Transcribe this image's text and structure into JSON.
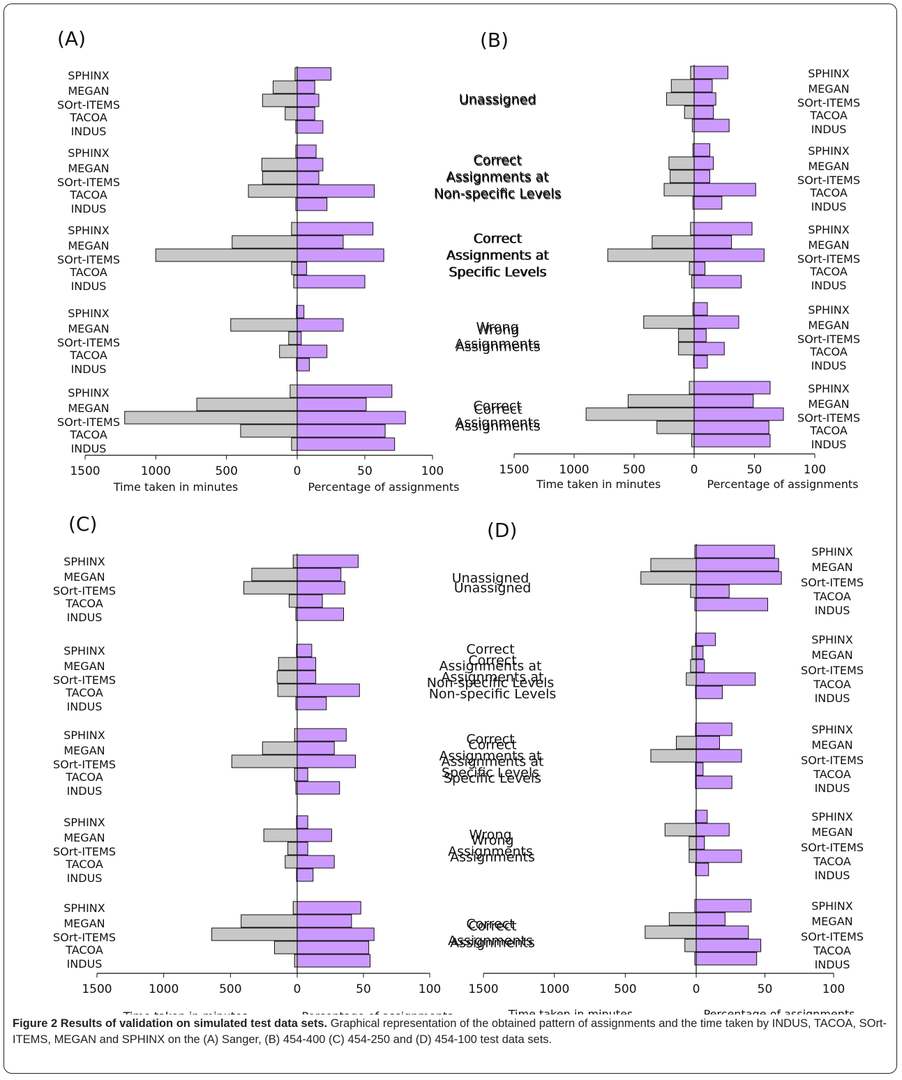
{
  "caption": {
    "label": "Figure 2",
    "title": "Results of validation on simulated test data sets.",
    "text": "Graphical representation of the obtained pattern of assignments and the time taken by INDUS, TACOA, SOrt-ITEMS, MEGAN and SPHINX on the (A) Sanger, (B) 454-400 (C) 454-250 and (D) 454-100 test data sets."
  },
  "colors": {
    "time": "#c8c8c8",
    "percent": "#cc99ff",
    "stroke": "#111111"
  },
  "chart_data": [
    {
      "panel": "(A)",
      "type": "bar",
      "orientation": "horizontal-back-to-back",
      "xlabel_left": "Time taken in minutes",
      "xlabel_right": "Percentage of assignments",
      "left_ticks": [
        "1500",
        "1000",
        "500",
        "0"
      ],
      "right_ticks": [
        "50",
        "100"
      ],
      "time_range": [
        0,
        1500
      ],
      "percent_range": [
        0,
        100
      ],
      "tools": [
        "SPHINX",
        "MEGAN",
        "SOrt-ITEMS",
        "TACOA",
        "INDUS"
      ],
      "groups": [
        {
          "label": [
            "Unassigned"
          ],
          "time": [
            15,
            170,
            245,
            85,
            10
          ],
          "percent": [
            25,
            13,
            16,
            13,
            19
          ]
        },
        {
          "label": [
            "Correct",
            "Assignments at",
            "Non-specific Levels"
          ],
          "time": [
            10,
            250,
            245,
            345,
            10
          ],
          "percent": [
            14,
            19,
            16,
            57,
            22
          ]
        },
        {
          "label": [
            "Correct",
            "Assignments at",
            "Specific Levels"
          ],
          "time": [
            40,
            460,
            1000,
            40,
            25
          ],
          "percent": [
            56,
            34,
            64,
            7,
            50
          ]
        },
        {
          "label": [
            "Wrong",
            "Assignments"
          ],
          "time": [
            5,
            470,
            60,
            125,
            5
          ],
          "percent": [
            5,
            34,
            3,
            22,
            9
          ]
        },
        {
          "label": [
            "Correct",
            "Assignments"
          ],
          "time": [
            50,
            710,
            1220,
            400,
            40
          ],
          "percent": [
            70,
            51,
            80,
            65,
            72
          ]
        }
      ]
    },
    {
      "panel": "(B)",
      "type": "bar",
      "orientation": "horizontal-back-to-back",
      "xlabel_left": "Time taken in minutes",
      "xlabel_right": "Percentage of assignments",
      "left_ticks": [
        "1500",
        "1000",
        "500",
        "0"
      ],
      "right_ticks": [
        "50",
        "100"
      ],
      "time_range": [
        0,
        1500
      ],
      "percent_range": [
        0,
        100
      ],
      "tools": [
        "SPHINX",
        "MEGAN",
        "SOrt-ITEMS",
        "TACOA",
        "INDUS"
      ],
      "groups": [
        {
          "label": [
            "Unassigned"
          ],
          "time": [
            30,
            190,
            230,
            80,
            15
          ],
          "percent": [
            28,
            15,
            18,
            16,
            29
          ]
        },
        {
          "label": [
            "Correct",
            "Assignments at",
            "Non-specific Levels"
          ],
          "time": [
            10,
            210,
            200,
            250,
            10
          ],
          "percent": [
            13,
            16,
            13,
            51,
            23
          ]
        },
        {
          "label": [
            "Correct",
            "Assignments at",
            "Specific Levels"
          ],
          "time": [
            30,
            350,
            720,
            40,
            20
          ],
          "percent": [
            48,
            31,
            58,
            9,
            39
          ]
        },
        {
          "label": [
            "Wrong",
            "Assignments"
          ],
          "time": [
            10,
            420,
            130,
            130,
            5
          ],
          "percent": [
            11,
            37,
            10,
            25,
            11
          ]
        },
        {
          "label": [
            "Correct",
            "Assignments"
          ],
          "time": [
            40,
            550,
            900,
            310,
            20
          ],
          "percent": [
            63,
            49,
            74,
            62,
            63
          ]
        }
      ]
    },
    {
      "panel": "(C)",
      "type": "bar",
      "orientation": "horizontal-back-to-back",
      "xlabel_left": "Time taken in minutes",
      "xlabel_right": "Percentage of assignments",
      "left_ticks": [
        "1500",
        "1000",
        "500",
        "0"
      ],
      "right_ticks": [
        "50",
        "100"
      ],
      "time_range": [
        0,
        1500
      ],
      "percent_range": [
        0,
        100
      ],
      "tools": [
        "SPHINX",
        "MEGAN",
        "SOrt-ITEMS",
        "TACOA",
        "INDUS"
      ],
      "groups": [
        {
          "label": [
            "Unassigned"
          ],
          "time": [
            30,
            340,
            400,
            60,
            10
          ],
          "percent": [
            46,
            33,
            36,
            19,
            35
          ]
        },
        {
          "label": [
            "Correct",
            "Assignments at",
            "Non-specific Levels"
          ],
          "time": [
            5,
            140,
            150,
            145,
            10
          ],
          "percent": [
            11,
            14,
            14,
            47,
            22
          ]
        },
        {
          "label": [
            "Correct",
            "Assignments at",
            "Specific Levels"
          ],
          "time": [
            20,
            260,
            490,
            20,
            10
          ],
          "percent": [
            37,
            28,
            44,
            8,
            32
          ]
        },
        {
          "label": [
            "Wrong",
            "Assignments"
          ],
          "time": [
            5,
            250,
            70,
            90,
            5
          ],
          "percent": [
            8,
            26,
            8,
            28,
            12
          ]
        },
        {
          "label": [
            "Correct",
            "Assignments"
          ],
          "time": [
            30,
            420,
            640,
            170,
            20
          ],
          "percent": [
            48,
            41,
            58,
            54,
            55
          ]
        }
      ]
    },
    {
      "panel": "(D)",
      "type": "bar",
      "orientation": "horizontal-back-to-back",
      "xlabel_left": "Time taken in minutes",
      "xlabel_right": "Percentage of assignments",
      "left_ticks": [
        "1500",
        "1000",
        "500",
        "0"
      ],
      "right_ticks": [
        "50",
        "100"
      ],
      "time_range": [
        0,
        1500
      ],
      "percent_range": [
        0,
        100
      ],
      "tools": [
        "SPHINX",
        "MEGAN",
        "SOrt-ITEMS",
        "TACOA",
        "INDUS"
      ],
      "groups": [
        {
          "label": [
            "Unassigned"
          ],
          "time": [
            10,
            320,
            390,
            40,
            10
          ],
          "percent": [
            57,
            60,
            62,
            24,
            52
          ]
        },
        {
          "label": [
            "Correct",
            "Assignments at",
            "Non-specific Levels"
          ],
          "time": [
            5,
            30,
            40,
            70,
            5
          ],
          "percent": [
            14,
            5,
            6,
            43,
            19
          ]
        },
        {
          "label": [
            "Correct",
            "Assignments at",
            "Specific Levels"
          ],
          "time": [
            5,
            140,
            320,
            5,
            5
          ],
          "percent": [
            26,
            17,
            33,
            5,
            26
          ]
        },
        {
          "label": [
            "Wrong",
            "Assignments"
          ],
          "time": [
            5,
            220,
            50,
            50,
            5
          ],
          "percent": [
            8,
            24,
            6,
            33,
            9
          ]
        },
        {
          "label": [
            "Correct",
            "Assignments"
          ],
          "time": [
            10,
            190,
            360,
            80,
            10
          ],
          "percent": [
            40,
            21,
            38,
            47,
            44
          ]
        }
      ]
    }
  ]
}
